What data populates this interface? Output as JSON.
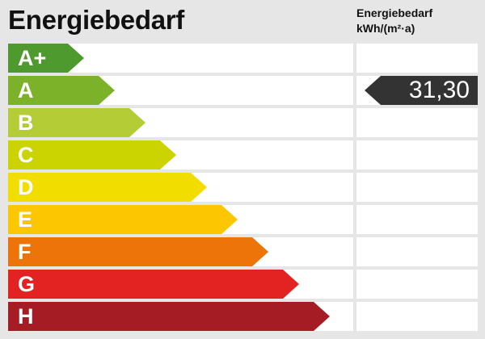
{
  "title": "Energiebedarf",
  "column_header": {
    "line1": "Energiebedarf",
    "line2": "kWh/(m²·a)"
  },
  "classes": [
    {
      "label": "A+",
      "color": "#4e9a2f"
    },
    {
      "label": "A",
      "color": "#7cb22a"
    },
    {
      "label": "B",
      "color": "#b4cc36"
    },
    {
      "label": "C",
      "color": "#cbd300"
    },
    {
      "label": "D",
      "color": "#f1de00"
    },
    {
      "label": "E",
      "color": "#fcc700"
    },
    {
      "label": "F",
      "color": "#ec7408"
    },
    {
      "label": "G",
      "color": "#e32322"
    },
    {
      "label": "H",
      "color": "#a51c24"
    }
  ],
  "value": {
    "text": "31,30",
    "class": "A",
    "color": "#333333"
  }
}
